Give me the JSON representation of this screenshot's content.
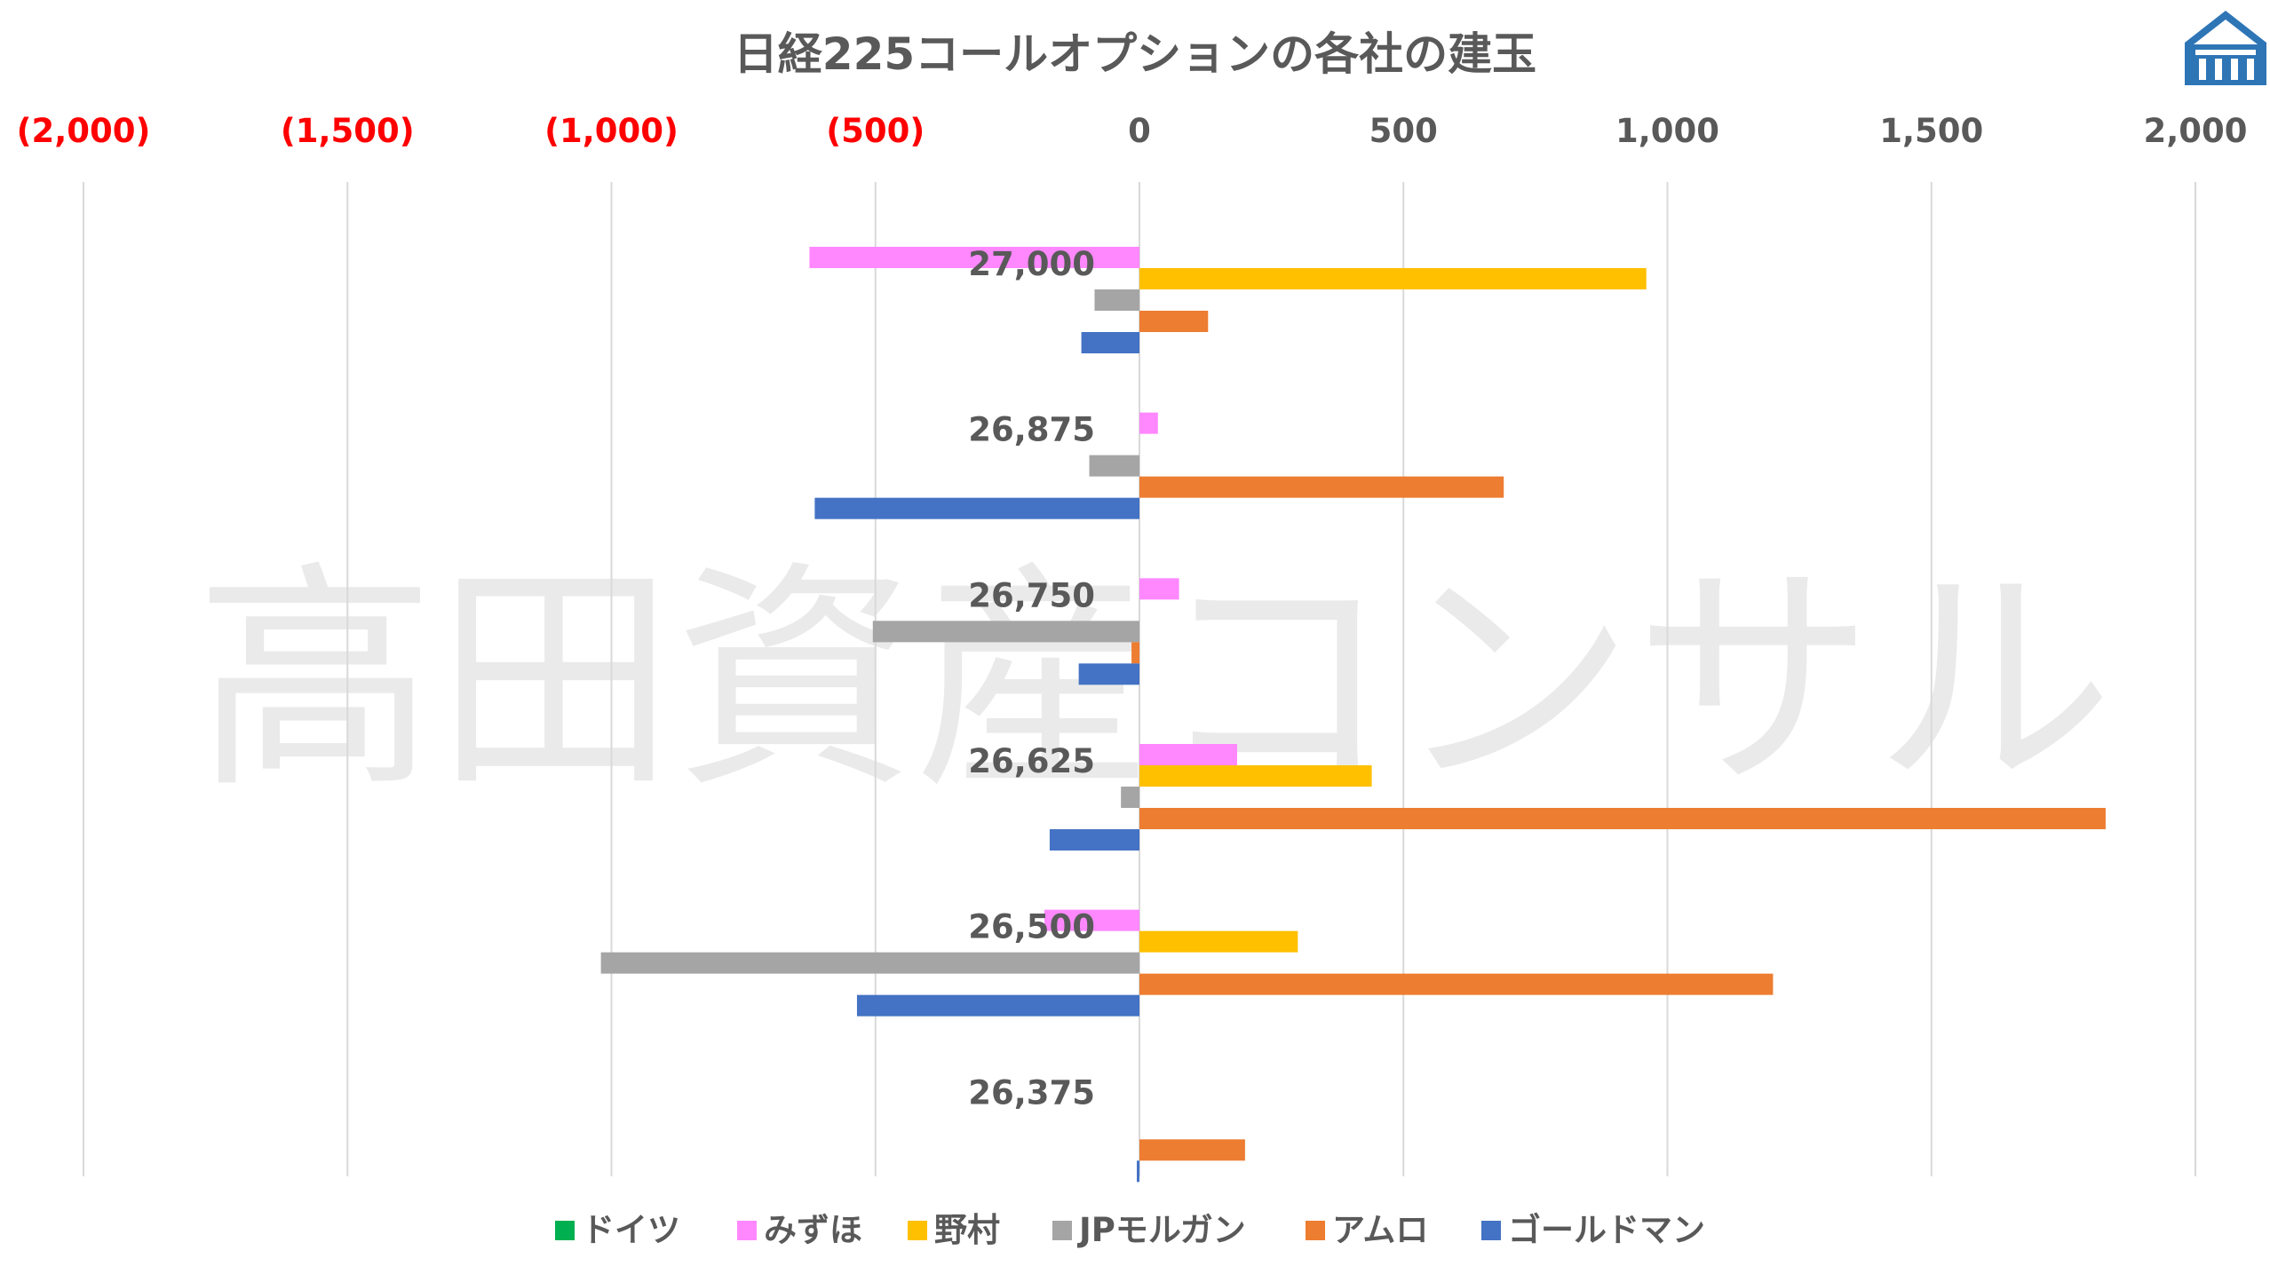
{
  "chart_data": {
    "type": "bar",
    "orientation": "horizontal",
    "title": "日経225コールオプションの各社の建玉",
    "watermark": "高田資産コンサル",
    "categories": [
      "27,000",
      "26,875",
      "26,750",
      "26,625",
      "26,500",
      "26,375"
    ],
    "xlim": [
      -2000,
      2000
    ],
    "xticks": [
      {
        "value": -2000,
        "label": "(2,000)",
        "color": "#ff0000"
      },
      {
        "value": -1500,
        "label": "(1,500)",
        "color": "#ff0000"
      },
      {
        "value": -1000,
        "label": "(1,000)",
        "color": "#ff0000"
      },
      {
        "value": -500,
        "label": "(500)",
        "color": "#ff0000"
      },
      {
        "value": 0,
        "label": "0",
        "color": "#595959"
      },
      {
        "value": 500,
        "label": "500",
        "color": "#595959"
      },
      {
        "value": 1000,
        "label": "1,000",
        "color": "#595959"
      },
      {
        "value": 1500,
        "label": "1,500",
        "color": "#595959"
      },
      {
        "value": 2000,
        "label": "2,000",
        "color": "#595959"
      }
    ],
    "grid": true,
    "legend_position": "bottom",
    "series": [
      {
        "name": "ドイツ",
        "color": "#00b050",
        "values": [
          0,
          0,
          0,
          0,
          0,
          0
        ]
      },
      {
        "name": "みずほ",
        "color": "#ff88ff",
        "values": [
          -625,
          35,
          75,
          185,
          -180,
          0
        ]
      },
      {
        "name": "野村",
        "color": "#ffc000",
        "values": [
          960,
          0,
          0,
          440,
          300,
          0
        ]
      },
      {
        "name": "JPモルガン",
        "color": "#a5a5a5",
        "values": [
          -85,
          -95,
          -505,
          -35,
          -1020,
          0
        ]
      },
      {
        "name": "アムロ",
        "color": "#ed7d31",
        "values": [
          130,
          690,
          -15,
          1830,
          1200,
          200
        ]
      },
      {
        "name": "ゴールドマン",
        "color": "#4472c4",
        "values": [
          -110,
          -615,
          -115,
          -170,
          -535,
          -5
        ]
      }
    ]
  }
}
